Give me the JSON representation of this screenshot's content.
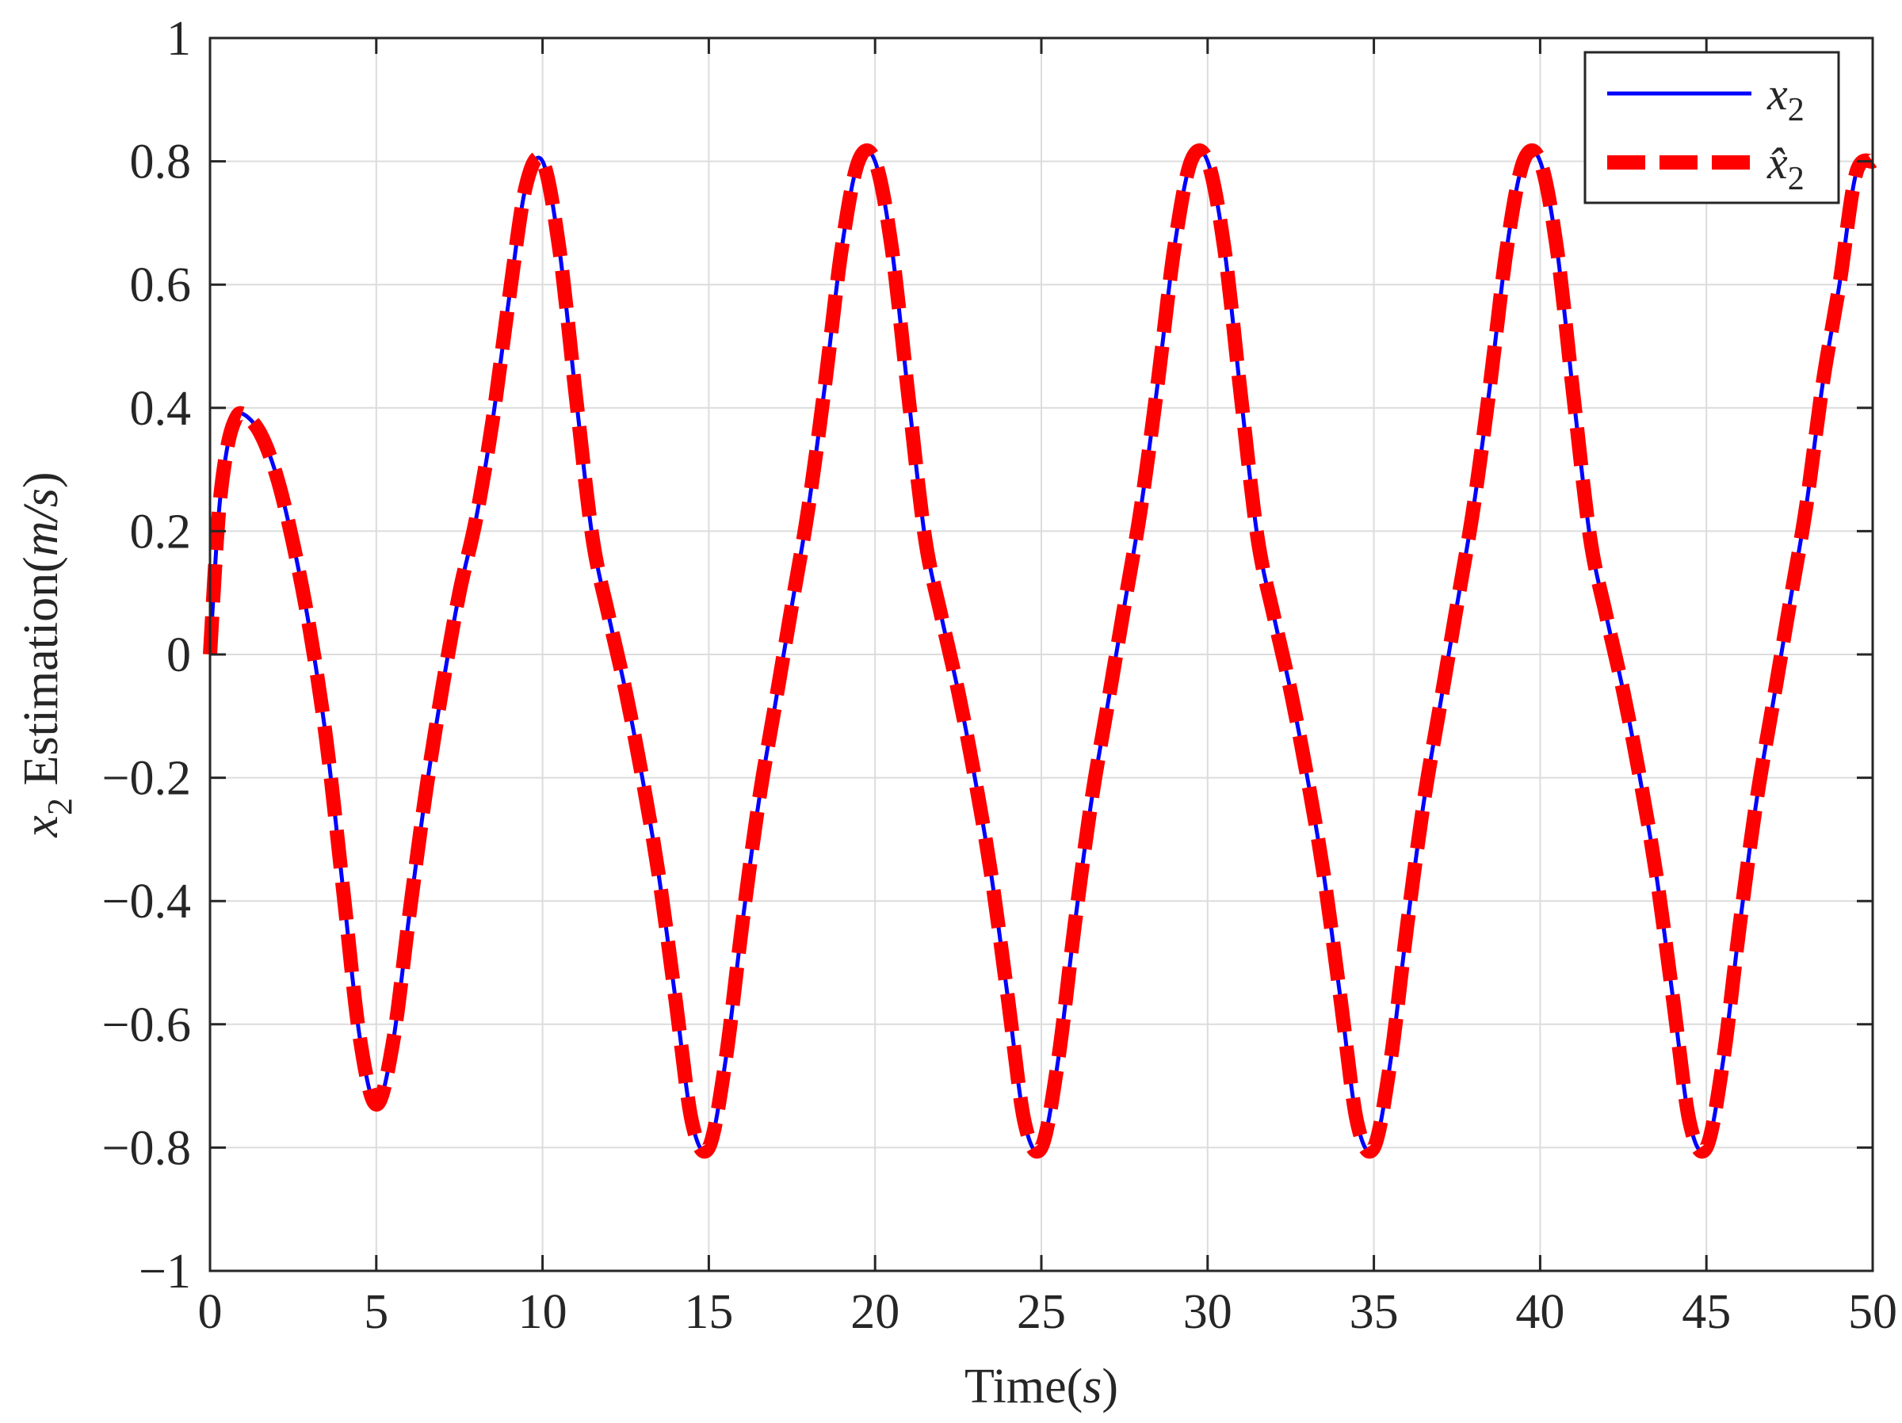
{
  "chart_data": {
    "type": "line",
    "title": "",
    "xlabel": {
      "text": "Time(",
      "var": "s",
      "close": ")"
    },
    "ylabel": {
      "var": "x",
      "sub": "2",
      "text": " Estimation(",
      "unit": "m/s",
      "close": ")"
    },
    "xlim": [
      0,
      50
    ],
    "ylim": [
      -1,
      1
    ],
    "xticks": [
      0,
      5,
      10,
      15,
      20,
      25,
      30,
      35,
      40,
      45,
      50
    ],
    "xtick_labels": [
      "0",
      "5",
      "10",
      "15",
      "20",
      "25",
      "30",
      "35",
      "40",
      "45",
      "50"
    ],
    "yticks": [
      -1,
      -0.8,
      -0.6,
      -0.4,
      -0.2,
      0,
      0.2,
      0.4,
      0.6,
      0.8,
      1
    ],
    "ytick_labels": [
      "−1",
      "−0.8",
      "−0.6",
      "−0.4",
      "−0.2",
      "0",
      "0.2",
      "0.4",
      "0.6",
      "0.8",
      "1"
    ],
    "grid": true,
    "legend_position": "top-right",
    "series": [
      {
        "name": "x₂",
        "legend": {
          "base": "x",
          "sub": "2"
        },
        "color": "#0000ff",
        "style": "solid",
        "x": [
          0,
          0.25,
          0.5,
          0.75,
          1,
          1.5,
          2,
          2.5,
          3,
          3.5,
          4,
          4.5,
          5,
          5.5,
          6,
          6.5,
          7,
          7.5,
          8,
          8.5,
          9,
          9.5,
          10,
          10.5,
          11,
          11.5,
          12,
          12.5,
          13,
          13.5,
          14,
          14.5,
          15,
          15.5,
          16,
          16.5,
          17,
          17.5,
          18,
          18.5,
          19,
          19.5,
          20,
          20.5,
          21,
          21.5,
          22,
          22.5,
          23,
          23.5,
          24,
          24.5,
          25,
          25.5,
          26,
          26.5,
          27,
          27.5,
          28,
          28.5,
          29,
          29.5,
          30,
          30.5,
          31,
          31.5,
          32,
          32.5,
          33,
          33.5,
          34,
          34.5,
          35,
          35.5,
          36,
          36.5,
          37,
          37.5,
          38,
          38.5,
          39,
          39.5,
          40,
          40.5,
          41,
          41.5,
          42,
          42.5,
          43,
          43.5,
          44,
          44.5,
          45,
          45.5,
          46,
          46.5,
          47,
          47.5,
          48,
          48.5,
          49,
          49.5,
          50
        ],
        "y": [
          0,
          0.22,
          0.33,
          0.38,
          0.39,
          0.36,
          0.29,
          0.18,
          0.04,
          -0.14,
          -0.38,
          -0.62,
          -0.73,
          -0.63,
          -0.42,
          -0.22,
          -0.05,
          0.1,
          0.22,
          0.38,
          0.58,
          0.76,
          0.8,
          0.66,
          0.42,
          0.19,
          0.06,
          -0.06,
          -0.2,
          -0.36,
          -0.56,
          -0.76,
          -0.8,
          -0.66,
          -0.44,
          -0.24,
          -0.08,
          0.08,
          0.24,
          0.44,
          0.66,
          0.8,
          0.8,
          0.66,
          0.42,
          0.19,
          0.06,
          -0.06,
          -0.2,
          -0.36,
          -0.56,
          -0.76,
          -0.8,
          -0.66,
          -0.44,
          -0.24,
          -0.08,
          0.08,
          0.24,
          0.44,
          0.66,
          0.8,
          0.8,
          0.66,
          0.42,
          0.19,
          0.06,
          -0.06,
          -0.2,
          -0.36,
          -0.56,
          -0.76,
          -0.8,
          -0.66,
          -0.44,
          -0.24,
          -0.08,
          0.08,
          0.24,
          0.44,
          0.66,
          0.8,
          0.8,
          0.66,
          0.42,
          0.19,
          0.06,
          -0.06,
          -0.2,
          -0.36,
          -0.56,
          -0.76,
          -0.8,
          -0.66,
          -0.44,
          -0.24,
          -0.08,
          0.08,
          0.24,
          0.44,
          0.6,
          0.78,
          0.8
        ]
      },
      {
        "name": "x̂₂",
        "legend": {
          "base": "x̂",
          "sub": "2"
        },
        "color": "#ff0000",
        "style": "dashed",
        "x": [
          0,
          0.25,
          0.5,
          0.75,
          1,
          1.5,
          2,
          2.5,
          3,
          3.5,
          4,
          4.5,
          5,
          5.5,
          6,
          6.5,
          7,
          7.5,
          8,
          8.5,
          9,
          9.5,
          10,
          10.5,
          11,
          11.5,
          12,
          12.5,
          13,
          13.5,
          14,
          14.5,
          15,
          15.5,
          16,
          16.5,
          17,
          17.5,
          18,
          18.5,
          19,
          19.5,
          20,
          20.5,
          21,
          21.5,
          22,
          22.5,
          23,
          23.5,
          24,
          24.5,
          25,
          25.5,
          26,
          26.5,
          27,
          27.5,
          28,
          28.5,
          29,
          29.5,
          30,
          30.5,
          31,
          31.5,
          32,
          32.5,
          33,
          33.5,
          34,
          34.5,
          35,
          35.5,
          36,
          36.5,
          37,
          37.5,
          38,
          38.5,
          39,
          39.5,
          40,
          40.5,
          41,
          41.5,
          42,
          42.5,
          43,
          43.5,
          44,
          44.5,
          45,
          45.5,
          46,
          46.5,
          47,
          47.5,
          48,
          48.5,
          49,
          49.5,
          50
        ],
        "y": [
          0,
          0.22,
          0.33,
          0.38,
          0.39,
          0.36,
          0.29,
          0.18,
          0.04,
          -0.14,
          -0.38,
          -0.62,
          -0.73,
          -0.63,
          -0.42,
          -0.22,
          -0.05,
          0.1,
          0.22,
          0.38,
          0.58,
          0.76,
          0.8,
          0.66,
          0.42,
          0.19,
          0.06,
          -0.06,
          -0.2,
          -0.36,
          -0.56,
          -0.76,
          -0.8,
          -0.66,
          -0.44,
          -0.24,
          -0.08,
          0.08,
          0.24,
          0.44,
          0.66,
          0.8,
          0.8,
          0.66,
          0.42,
          0.19,
          0.06,
          -0.06,
          -0.2,
          -0.36,
          -0.56,
          -0.76,
          -0.8,
          -0.66,
          -0.44,
          -0.24,
          -0.08,
          0.08,
          0.24,
          0.44,
          0.66,
          0.8,
          0.8,
          0.66,
          0.42,
          0.19,
          0.06,
          -0.06,
          -0.2,
          -0.36,
          -0.56,
          -0.76,
          -0.8,
          -0.66,
          -0.44,
          -0.24,
          -0.08,
          0.08,
          0.24,
          0.44,
          0.66,
          0.8,
          0.8,
          0.66,
          0.42,
          0.19,
          0.06,
          -0.06,
          -0.2,
          -0.36,
          -0.56,
          -0.76,
          -0.8,
          -0.66,
          -0.44,
          -0.24,
          -0.08,
          0.08,
          0.24,
          0.44,
          0.6,
          0.78,
          0.8
        ]
      }
    ]
  }
}
